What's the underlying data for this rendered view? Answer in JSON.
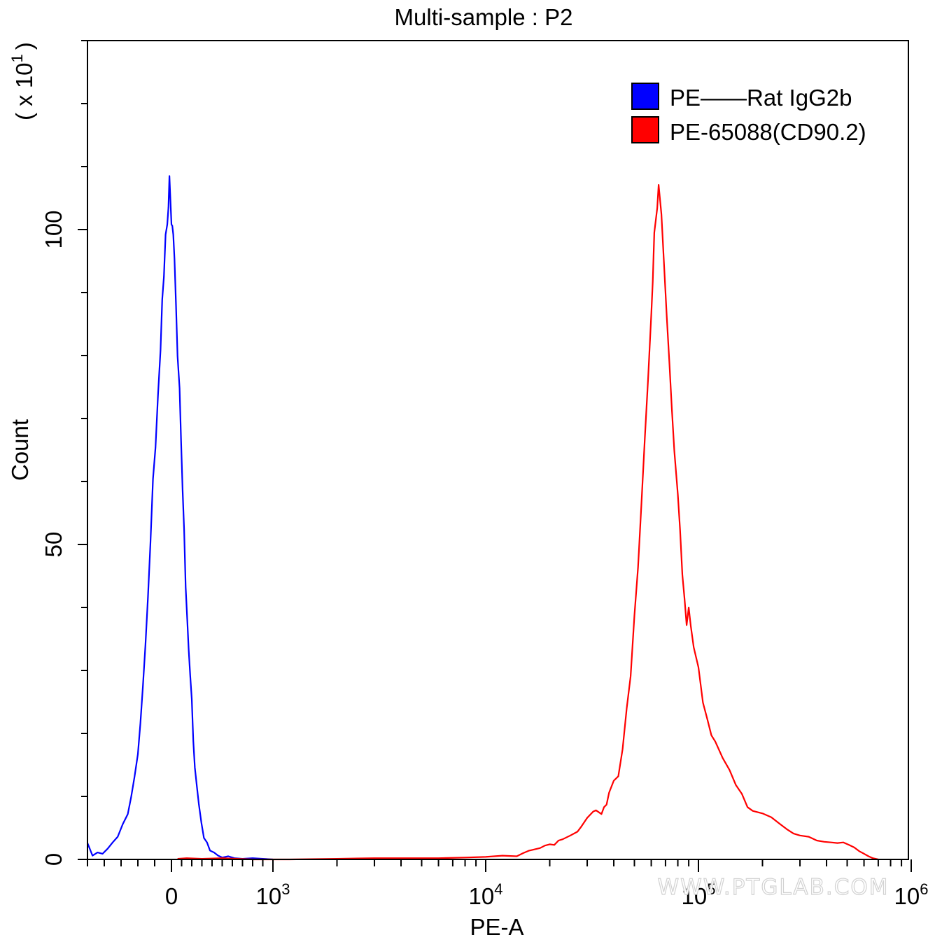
{
  "chart_data": {
    "type": "line",
    "title": "Multi-sample : P2",
    "xlabel": "PE-A",
    "ylabel": "Count",
    "ymultiplier_base": "( x 10",
    "ymultiplier_exp": "1",
    "ymultiplier_close": ")",
    "x_scale": "biexponential",
    "xlim": [
      -500,
      1000000
    ],
    "ylim": [
      0,
      130
    ],
    "y_ticks": [
      0,
      50,
      100
    ],
    "y_tick_labels": [
      "0",
      "50",
      "100"
    ],
    "x_ticks": [
      {
        "value": 0,
        "base": "0",
        "exp": ""
      },
      {
        "value": 1000,
        "base": "10",
        "exp": "3"
      },
      {
        "value": 10000,
        "base": "10",
        "exp": "4"
      },
      {
        "value": 100000,
        "base": "10",
        "exp": "5"
      },
      {
        "value": 1000000,
        "base": "10",
        "exp": "6"
      }
    ],
    "legend_position": "top-right",
    "watermark": "WWW.PTGLAB.COM",
    "series": [
      {
        "name": "PE——Rat IgG2b",
        "color": "#0000ff",
        "points": [
          [
            -500,
            2.6
          ],
          [
            -470,
            0.6
          ],
          [
            -440,
            1.1
          ],
          [
            -410,
            0.9
          ],
          [
            -380,
            1.7
          ],
          [
            -350,
            2.7
          ],
          [
            -320,
            3.6
          ],
          [
            -290,
            5.6
          ],
          [
            -260,
            7.2
          ],
          [
            -240,
            9.9
          ],
          [
            -220,
            13.1
          ],
          [
            -200,
            16.7
          ],
          [
            -185,
            21.6
          ],
          [
            -170,
            27.5
          ],
          [
            -155,
            34.0
          ],
          [
            -140,
            41.6
          ],
          [
            -125,
            50.3
          ],
          [
            -110,
            60.4
          ],
          [
            -95,
            65.4
          ],
          [
            -80,
            73.8
          ],
          [
            -65,
            80.9
          ],
          [
            -55,
            88.9
          ],
          [
            -45,
            92.5
          ],
          [
            -35,
            99.2
          ],
          [
            -25,
            100.8
          ],
          [
            -18,
            103.5
          ],
          [
            -12,
            108.5
          ],
          [
            -6,
            104.5
          ],
          [
            0,
            100.8
          ],
          [
            8,
            100.6
          ],
          [
            18,
            99.2
          ],
          [
            30,
            95.4
          ],
          [
            45,
            88.0
          ],
          [
            60,
            79.9
          ],
          [
            80,
            74.8
          ],
          [
            95,
            66.2
          ],
          [
            110,
            58.7
          ],
          [
            125,
            52.3
          ],
          [
            140,
            43.2
          ],
          [
            155,
            38.2
          ],
          [
            170,
            33.3
          ],
          [
            185,
            29.2
          ],
          [
            200,
            25.5
          ],
          [
            215,
            18.8
          ],
          [
            230,
            14.6
          ],
          [
            250,
            11.6
          ],
          [
            270,
            8.8
          ],
          [
            295,
            5.8
          ],
          [
            320,
            3.4
          ],
          [
            350,
            2.7
          ],
          [
            380,
            1.4
          ],
          [
            420,
            1.1
          ],
          [
            460,
            0.6
          ],
          [
            500,
            0.3
          ],
          [
            560,
            0.5
          ],
          [
            620,
            0.2
          ],
          [
            700,
            0.1
          ],
          [
            800,
            0.2
          ],
          [
            900,
            0.1
          ],
          [
            1000,
            0.0
          ]
        ]
      },
      {
        "name": "PE-65088(CD90.2)",
        "color": "#ff0000",
        "points": [
          [
            60,
            0.1
          ],
          [
            150,
            0.2
          ],
          [
            300,
            0.1
          ],
          [
            500,
            0.2
          ],
          [
            800,
            0.0
          ],
          [
            1200,
            0.0
          ],
          [
            2000,
            0.1
          ],
          [
            3000,
            0.2
          ],
          [
            4000,
            0.2
          ],
          [
            6000,
            0.2
          ],
          [
            8000,
            0.3
          ],
          [
            10000,
            0.4
          ],
          [
            12000,
            0.6
          ],
          [
            14000,
            0.5
          ],
          [
            15000,
            1.0
          ],
          [
            16000,
            1.4
          ],
          [
            17000,
            1.6
          ],
          [
            18000,
            1.8
          ],
          [
            19000,
            2.2
          ],
          [
            20000,
            2.4
          ],
          [
            21000,
            2.3
          ],
          [
            22000,
            3.0
          ],
          [
            23000,
            3.2
          ],
          [
            25000,
            3.8
          ],
          [
            27000,
            4.4
          ],
          [
            28000,
            5.1
          ],
          [
            30000,
            6.6
          ],
          [
            32000,
            7.6
          ],
          [
            33000,
            7.8
          ],
          [
            35000,
            7.2
          ],
          [
            36000,
            8.3
          ],
          [
            37000,
            8.7
          ],
          [
            38000,
            10.6
          ],
          [
            40000,
            12.5
          ],
          [
            42000,
            13.2
          ],
          [
            44000,
            17.5
          ],
          [
            46000,
            24.0
          ],
          [
            48000,
            29.1
          ],
          [
            50000,
            38.7
          ],
          [
            52000,
            46.4
          ],
          [
            54000,
            56.6
          ],
          [
            56000,
            66.9
          ],
          [
            58000,
            76.4
          ],
          [
            60000,
            86.5
          ],
          [
            61000,
            91.7
          ],
          [
            62000,
            99.5
          ],
          [
            64000,
            103.4
          ],
          [
            65000,
            107.1
          ],
          [
            67000,
            102.4
          ],
          [
            69000,
            94.1
          ],
          [
            71000,
            86.0
          ],
          [
            73000,
            78.8
          ],
          [
            75000,
            71.5
          ],
          [
            77000,
            64.9
          ],
          [
            80000,
            58.0
          ],
          [
            82000,
            52.2
          ],
          [
            84000,
            45.2
          ],
          [
            86000,
            41.4
          ],
          [
            88000,
            37.2
          ],
          [
            90000,
            40.0
          ],
          [
            92000,
            37.1
          ],
          [
            95000,
            33.7
          ],
          [
            100000,
            30.5
          ],
          [
            105000,
            24.9
          ],
          [
            110000,
            22.3
          ],
          [
            115000,
            19.7
          ],
          [
            120000,
            18.7
          ],
          [
            130000,
            16.1
          ],
          [
            140000,
            14.2
          ],
          [
            150000,
            11.8
          ],
          [
            160000,
            10.4
          ],
          [
            170000,
            8.3
          ],
          [
            180000,
            7.7
          ],
          [
            200000,
            7.3
          ],
          [
            220000,
            6.7
          ],
          [
            240000,
            5.7
          ],
          [
            260000,
            4.8
          ],
          [
            280000,
            4.1
          ],
          [
            300000,
            3.8
          ],
          [
            330000,
            3.6
          ],
          [
            360000,
            3.0
          ],
          [
            390000,
            2.8
          ],
          [
            420000,
            2.7
          ],
          [
            450000,
            2.6
          ],
          [
            480000,
            2.7
          ],
          [
            510000,
            2.3
          ],
          [
            540000,
            1.9
          ],
          [
            570000,
            1.3
          ],
          [
            600000,
            0.9
          ],
          [
            630000,
            0.5
          ],
          [
            660000,
            0.2
          ],
          [
            700000,
            0.0
          ]
        ]
      }
    ]
  }
}
